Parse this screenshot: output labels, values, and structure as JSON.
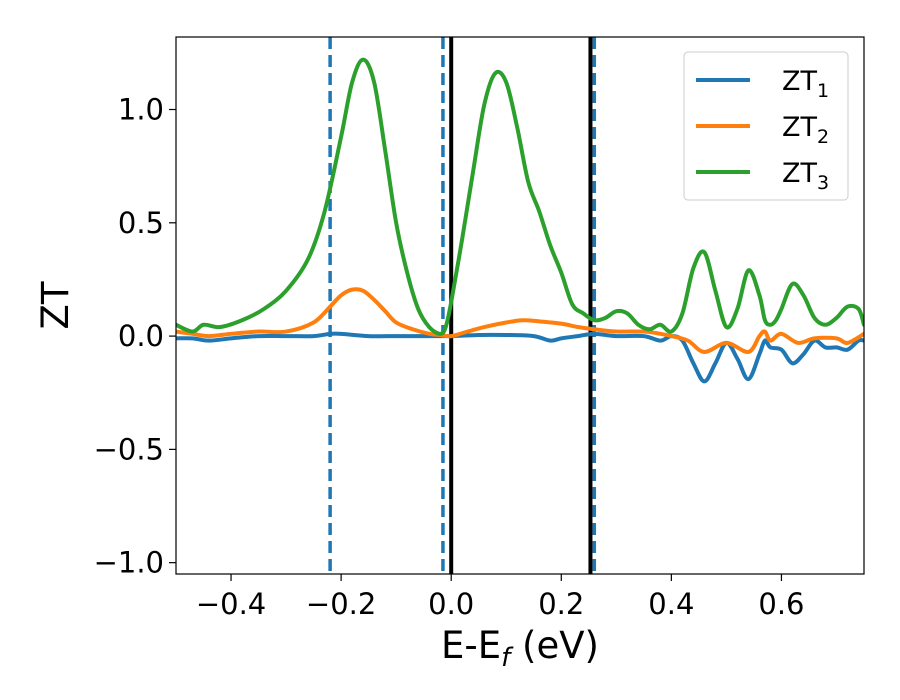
{
  "chart_data": {
    "type": "line",
    "xlabel_main": "E-E",
    "xlabel_sub": "f",
    "xlabel_unit": " (eV)",
    "ylabel": "ZT",
    "xlim": [
      -0.5,
      0.75
    ],
    "ylim": [
      -1.05,
      1.32
    ],
    "xticks": [
      -0.4,
      -0.2,
      0.0,
      0.2,
      0.4,
      0.6
    ],
    "xtick_labels": [
      "−0.4",
      "−0.2",
      "0.0",
      "0.2",
      "0.4",
      "0.6"
    ],
    "yticks": [
      -1.0,
      -0.5,
      0.0,
      0.5,
      1.0
    ],
    "ytick_labels": [
      "−1.0",
      "−0.5",
      "0.0",
      "0.5",
      "1.0"
    ],
    "grid": false,
    "legend_position": "top-right",
    "vlines": [
      {
        "x": -0.22,
        "style": "dashed",
        "color": "#1f77b4"
      },
      {
        "x": -0.015,
        "style": "dashed",
        "color": "#1f77b4"
      },
      {
        "x": 0.0,
        "style": "solid",
        "color": "#000000"
      },
      {
        "x": 0.253,
        "style": "solid",
        "color": "#000000"
      },
      {
        "x": 0.26,
        "style": "dashed",
        "color": "#1f77b4"
      }
    ],
    "series": [
      {
        "name": "ZT",
        "sub": "1",
        "color": "#1f77b4",
        "x": [
          -0.5,
          -0.47,
          -0.44,
          -0.4,
          -0.35,
          -0.3,
          -0.25,
          -0.22,
          -0.2,
          -0.15,
          -0.1,
          -0.05,
          0.0,
          0.05,
          0.1,
          0.15,
          0.18,
          0.2,
          0.23,
          0.26,
          0.3,
          0.35,
          0.38,
          0.4,
          0.42,
          0.44,
          0.46,
          0.48,
          0.5,
          0.52,
          0.54,
          0.56,
          0.57,
          0.58,
          0.6,
          0.62,
          0.64,
          0.66,
          0.68,
          0.7,
          0.72,
          0.74,
          0.75
        ],
        "y": [
          -0.01,
          -0.01,
          -0.02,
          -0.01,
          0.0,
          0.0,
          0.0,
          0.01,
          0.01,
          0.0,
          0.0,
          0.0,
          0.0,
          0.005,
          0.005,
          0.0,
          -0.02,
          -0.01,
          0.0,
          0.01,
          0.0,
          0.0,
          -0.02,
          0.0,
          -0.02,
          -0.12,
          -0.2,
          -0.12,
          -0.03,
          -0.1,
          -0.19,
          -0.08,
          -0.02,
          -0.05,
          -0.06,
          -0.12,
          -0.08,
          -0.02,
          -0.05,
          -0.05,
          -0.06,
          -0.02,
          -0.02
        ]
      },
      {
        "name": "ZT",
        "sub": "2",
        "color": "#ff7f0e",
        "x": [
          -0.5,
          -0.47,
          -0.44,
          -0.4,
          -0.35,
          -0.3,
          -0.25,
          -0.22,
          -0.2,
          -0.18,
          -0.16,
          -0.14,
          -0.12,
          -0.1,
          -0.07,
          -0.04,
          -0.02,
          0.0,
          0.03,
          0.06,
          0.1,
          0.13,
          0.16,
          0.2,
          0.23,
          0.26,
          0.3,
          0.35,
          0.38,
          0.4,
          0.43,
          0.46,
          0.5,
          0.54,
          0.56,
          0.57,
          0.58,
          0.6,
          0.63,
          0.66,
          0.7,
          0.72,
          0.75
        ],
        "y": [
          0.02,
          0.01,
          0.0,
          0.01,
          0.02,
          0.02,
          0.06,
          0.13,
          0.18,
          0.205,
          0.2,
          0.16,
          0.11,
          0.06,
          0.03,
          0.01,
          0.005,
          0.0,
          0.02,
          0.04,
          0.06,
          0.07,
          0.065,
          0.055,
          0.04,
          0.03,
          0.02,
          0.02,
          0.01,
          0.0,
          -0.02,
          -0.07,
          -0.03,
          -0.07,
          0.0,
          0.02,
          -0.02,
          0.01,
          -0.03,
          -0.01,
          -0.01,
          -0.03,
          0.01
        ]
      },
      {
        "name": "ZT",
        "sub": "3",
        "color": "#2ca02c",
        "x": [
          -0.5,
          -0.47,
          -0.45,
          -0.42,
          -0.38,
          -0.34,
          -0.3,
          -0.26,
          -0.23,
          -0.2,
          -0.18,
          -0.16,
          -0.14,
          -0.12,
          -0.1,
          -0.08,
          -0.06,
          -0.04,
          -0.02,
          -0.01,
          0.0,
          0.02,
          0.04,
          0.06,
          0.08,
          0.1,
          0.12,
          0.14,
          0.16,
          0.18,
          0.2,
          0.22,
          0.24,
          0.26,
          0.28,
          0.3,
          0.32,
          0.34,
          0.36,
          0.38,
          0.4,
          0.42,
          0.44,
          0.46,
          0.48,
          0.5,
          0.52,
          0.54,
          0.56,
          0.57,
          0.58,
          0.59,
          0.6,
          0.62,
          0.64,
          0.66,
          0.68,
          0.7,
          0.72,
          0.74,
          0.75
        ],
        "y": [
          0.05,
          0.02,
          0.05,
          0.04,
          0.07,
          0.12,
          0.2,
          0.34,
          0.55,
          0.88,
          1.12,
          1.22,
          1.12,
          0.82,
          0.5,
          0.28,
          0.12,
          0.04,
          0.01,
          0.04,
          0.15,
          0.43,
          0.73,
          1.02,
          1.16,
          1.12,
          0.92,
          0.68,
          0.55,
          0.4,
          0.28,
          0.14,
          0.1,
          0.07,
          0.08,
          0.11,
          0.1,
          0.05,
          0.03,
          0.05,
          0.02,
          0.1,
          0.3,
          0.37,
          0.2,
          0.04,
          0.12,
          0.29,
          0.18,
          0.07,
          0.05,
          0.07,
          0.12,
          0.23,
          0.18,
          0.08,
          0.05,
          0.08,
          0.13,
          0.12,
          0.05
        ]
      }
    ]
  }
}
